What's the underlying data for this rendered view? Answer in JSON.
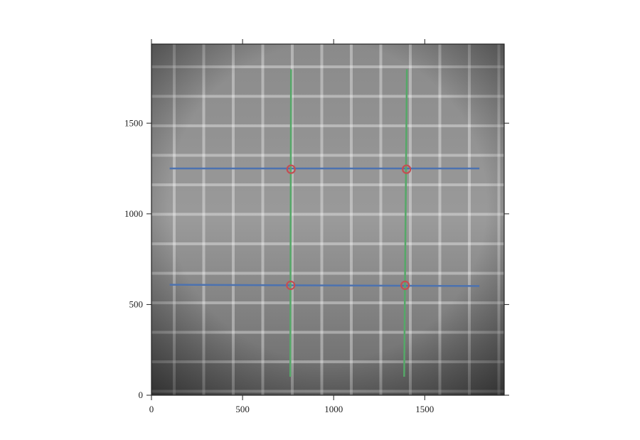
{
  "chart_data": {
    "type": "image-overlay",
    "xlim": [
      0,
      1936
    ],
    "ylim": [
      0,
      1936
    ],
    "xticks": [
      0,
      500,
      1000,
      1500
    ],
    "yticks": [
      0,
      500,
      1000,
      1500
    ],
    "series": [
      {
        "style": "line",
        "color": "#4c72b0",
        "x": [
          100,
          1800
        ],
        "values": [
          1250,
          1250
        ]
      },
      {
        "style": "line",
        "color": "#4c72b0",
        "x": [
          100,
          1800
        ],
        "values": [
          609,
          602
        ]
      },
      {
        "style": "line",
        "color": "#55a868",
        "x": [
          766,
          762
        ],
        "values": [
          1797,
          102
        ]
      },
      {
        "style": "line",
        "color": "#55a868",
        "x": [
          1402,
          1387
        ],
        "values": [
          1797,
          102
        ]
      },
      {
        "style": "marker",
        "color": "#c44e52",
        "x": [
          766,
          1400,
          764,
          1392
        ],
        "values": [
          1246,
          1246,
          606,
          606
        ]
      }
    ]
  }
}
